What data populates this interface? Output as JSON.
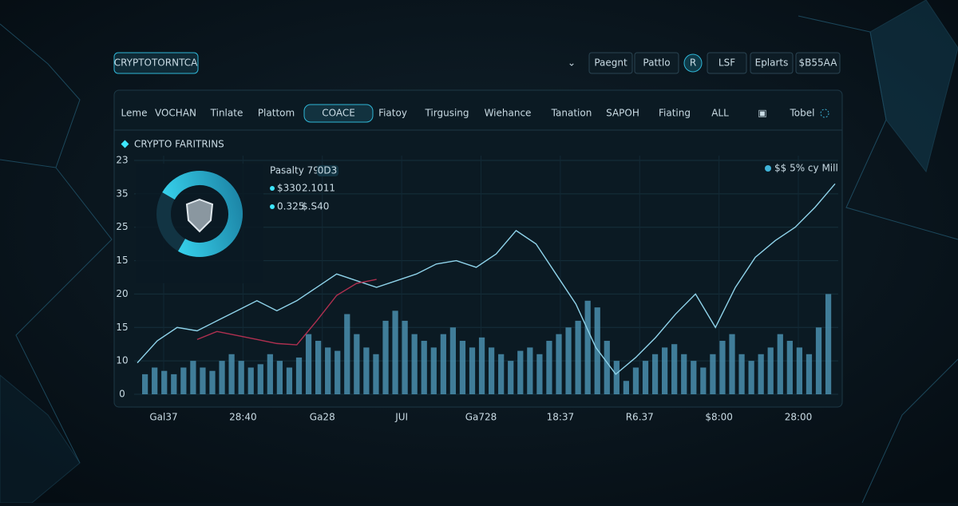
{
  "header": {
    "brand": "CRYPTOTORNTCA",
    "buttons": [
      "Paegnt",
      "Pattlo",
      "R",
      "LSF",
      "Eplarts",
      "$B55AA"
    ]
  },
  "nav": {
    "tabs": [
      "Leme",
      "VOCHAN",
      "Tinlate",
      "Plattom",
      "COACE",
      "Fiatoy",
      "Tirgusing",
      "Wiehance",
      "Tanation",
      "SAPOH",
      "Fiating",
      "ALL"
    ],
    "active": 4,
    "total": "Tobel"
  },
  "panel": {
    "title": "CRYPTO FARITRINS",
    "info": {
      "title": "Pasalty 797",
      "badge": "0D3",
      "rows": [
        [
          "$330",
          "2.1011"
        ],
        [
          "0.325",
          "$.S40"
        ]
      ]
    },
    "corner": "$$ 5% cy Mill"
  },
  "chart_data": {
    "type": "line",
    "xlabels": [
      "Gal37",
      "28:40",
      "Ga28",
      "JUI",
      "Ga728",
      "18:37",
      "R6.37",
      "$8:00",
      "28:00"
    ],
    "ylim": [
      0,
      35
    ],
    "yticks": [
      0,
      {
        "value": 5,
        "label": "10"
      },
      {
        "value": 10,
        "label": "15"
      },
      {
        "value": 15,
        "label": "20"
      },
      {
        "value": 20,
        "label": "15"
      },
      {
        "value": 25,
        "label": "25"
      },
      {
        "value": 30,
        "label": "35"
      },
      {
        "value": 35,
        "label": "23"
      }
    ],
    "grid": true,
    "series": [
      {
        "type": "bar",
        "color": "#4a8fae",
        "values": [
          3,
          4,
          3.5,
          3,
          4,
          5,
          4,
          3.5,
          5,
          6,
          5,
          4,
          4.5,
          6,
          5,
          4,
          5.5,
          9,
          8,
          7,
          6.5,
          12,
          9,
          7,
          6,
          11,
          12.5,
          11,
          9,
          8,
          7,
          9,
          10,
          8,
          7,
          8.5,
          7,
          6,
          5,
          6.5,
          7,
          6,
          8,
          9,
          10,
          11,
          14,
          13,
          8,
          5,
          2,
          4,
          5,
          6,
          7,
          7.5,
          6,
          5,
          4,
          6,
          8,
          9,
          6,
          5,
          6,
          7,
          9,
          8,
          7,
          6,
          10,
          15
        ]
      },
      {
        "type": "line",
        "color": "#8fd3ea",
        "values": [
          4.7,
          8,
          10,
          9.5,
          11,
          12.5,
          14,
          12.5,
          14,
          16,
          18,
          17,
          16,
          17,
          18,
          19.5,
          20,
          19,
          21,
          24.5,
          22.5,
          18,
          13.5,
          7,
          3,
          5.5,
          8.5,
          12,
          15,
          10,
          16,
          20.5,
          23,
          25,
          28,
          31.5
        ]
      },
      {
        "type": "line",
        "color": "#b03050",
        "values": [
          null,
          null,
          null,
          8.2,
          9.4,
          8.8,
          8.2,
          7.6,
          7.4,
          11,
          14.8,
          16.6,
          17.2,
          null,
          null,
          null,
          null,
          null,
          null,
          null,
          null,
          null,
          null,
          null,
          null,
          null,
          null,
          null,
          null,
          null,
          null,
          null,
          null,
          null,
          null,
          null
        ]
      }
    ]
  }
}
